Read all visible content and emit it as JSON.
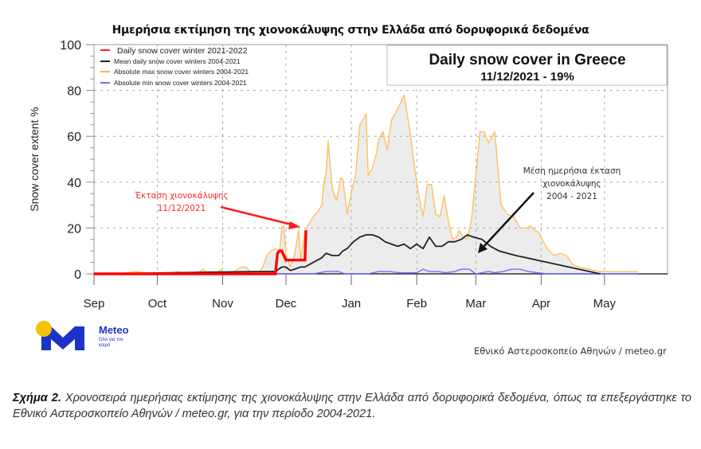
{
  "figure": {
    "greek_title": "Ημερήσια εκτίμηση της χιονοκάλυψης στην Ελλάδα από δορυφορικά δεδομένα",
    "source_credit": "Εθνικό Αστεροσκοπείο Αθηνών / meteo.gr",
    "logo": {
      "name": "Meteo",
      "tagline": "Όλα για τον καιρό",
      "sun_color": "#F5C400",
      "brand_color": "#1B33C9"
    },
    "annotation_red": {
      "line1": "Έκταση χιονοκάλυψης",
      "line2": "11/12/2021",
      "color": "#FF2020"
    },
    "annotation_black": {
      "line1": "Μέση ημερήσια έκταση",
      "line2": "χιονοκάλυψης",
      "line3": "2004 - 2021",
      "color": "#222222"
    }
  },
  "caption": {
    "label": "Σχήμα 2.",
    "text": " Χρονοσειρά ημερήσιας εκτίμησης της χιονοκάλυψης στην Ελλάδα από δορυφορικά δεδομένα, όπως τα επεξεργάστηκε το Εθνικό Αστεροσκοπείο Αθηνών / meteo.gr, για την περίοδο 2004-2021."
  },
  "chart_data": {
    "type": "line",
    "title": "Daily snow cover in Greece",
    "subtitle": "11/12/2021 - 19%",
    "xlabel": "",
    "ylabel": "Snow cover extent %",
    "ylim": [
      0,
      100
    ],
    "yticks": [
      0,
      20,
      40,
      60,
      80,
      100
    ],
    "grid": true,
    "legend_position": "upper left",
    "x_unit": "days since Sep 1",
    "categories": [
      "Sep",
      "Oct",
      "Nov",
      "Dec",
      "Jan",
      "Feb",
      "Mar",
      "Apr",
      "May"
    ],
    "category_day_offsets": [
      0,
      30,
      61,
      91,
      122,
      153,
      181,
      212,
      242
    ],
    "xlim_days": [
      0,
      268
    ],
    "series": [
      {
        "name": "Daily snow cover winter 2021-2022",
        "color": "#FF0000",
        "x": [
          0,
          86,
          87,
          88,
          89,
          90,
          91,
          96,
          97,
          98,
          99,
          100,
          100.5
        ],
        "y": [
          0,
          0,
          9,
          10,
          10,
          8,
          6,
          6,
          6,
          6,
          6,
          6,
          19
        ]
      },
      {
        "name": "Mean daily snow cover winters 2004-2021",
        "color": "#222222",
        "x": [
          0,
          76,
          86,
          89,
          91,
          93,
          95,
          98,
          100,
          103,
          106,
          108,
          110,
          113,
          116,
          118,
          120,
          123,
          126,
          129,
          132,
          135,
          138,
          141,
          144,
          147,
          150,
          153,
          156,
          159,
          162,
          165,
          168,
          171,
          174,
          177,
          180,
          184,
          188,
          192,
          196,
          200,
          205,
          210,
          215,
          220,
          225,
          230,
          235,
          240
        ],
        "y": [
          0,
          1,
          1,
          3,
          3,
          1.5,
          2,
          3,
          3,
          4.5,
          6,
          7,
          9,
          8,
          8,
          10,
          11,
          14,
          16,
          17,
          17,
          16,
          14,
          13,
          12,
          13,
          11,
          13,
          11,
          16,
          12,
          12,
          14,
          14,
          15,
          17,
          16,
          15,
          12,
          10,
          9,
          8,
          7,
          6,
          5,
          4,
          3,
          2,
          1,
          0
        ]
      },
      {
        "name": "Absolute max snow cover winters 2004-2021",
        "color": "#FFC060",
        "x": [
          0,
          10,
          20,
          30,
          35,
          40,
          45,
          50,
          52,
          54,
          56,
          58,
          60,
          62,
          65,
          68,
          70,
          72,
          74,
          76,
          78,
          80,
          82,
          84,
          86,
          88,
          89,
          90,
          91,
          93,
          95,
          97,
          98,
          100,
          102,
          104,
          106,
          108,
          109,
          110,
          111,
          113,
          115,
          117,
          118,
          120,
          122,
          124,
          126,
          128,
          129,
          130,
          132,
          134,
          135,
          137,
          139,
          141,
          144,
          147,
          150,
          152,
          154,
          156,
          158,
          160,
          162,
          164,
          166,
          168,
          170,
          172,
          173,
          175,
          177,
          179,
          181,
          183,
          185,
          187,
          190,
          193,
          196,
          199,
          202,
          205,
          207,
          209,
          211,
          213,
          215,
          218,
          221,
          224,
          227,
          230,
          235,
          240,
          250,
          258
        ],
        "y": [
          0,
          0,
          1,
          0,
          0,
          1,
          0,
          1,
          2,
          0,
          1,
          0,
          2,
          0,
          0,
          2,
          3,
          3,
          1,
          0,
          0,
          3,
          8,
          10,
          11,
          10,
          20,
          21,
          8,
          3,
          8,
          19,
          6,
          19,
          22,
          25,
          27,
          30,
          40,
          44,
          58,
          37,
          32,
          42,
          41,
          26,
          36,
          43,
          65,
          68,
          70,
          43,
          46,
          53,
          59,
          62,
          54,
          67,
          72,
          78,
          61,
          46,
          34,
          25,
          39,
          39,
          26,
          25,
          34,
          23,
          15,
          16,
          19,
          16,
          15,
          24,
          43,
          62,
          62,
          57,
          62,
          30,
          26,
          25,
          20,
          20,
          21,
          19,
          18,
          14,
          11,
          8,
          9,
          8,
          4,
          3,
          2,
          1,
          1,
          1
        ]
      },
      {
        "name": "Absolute min snow cover winters 2004-2021",
        "color": "#6E6EFF",
        "x": [
          0,
          100,
          104,
          110,
          113,
          116,
          119,
          122,
          130,
          135,
          140,
          145,
          150,
          153,
          156,
          159,
          163,
          167,
          171,
          174,
          178,
          181,
          184,
          187,
          190,
          194,
          198,
          202,
          206,
          210,
          215,
          258
        ],
        "y": [
          0,
          0,
          0,
          1,
          1,
          1,
          0,
          0,
          0,
          1,
          1,
          0.5,
          0.5,
          0.5,
          2,
          1,
          1,
          0.5,
          1,
          2,
          2,
          0,
          0.5,
          1,
          0.5,
          1,
          2,
          2,
          1,
          0.5,
          0,
          0
        ]
      }
    ]
  }
}
